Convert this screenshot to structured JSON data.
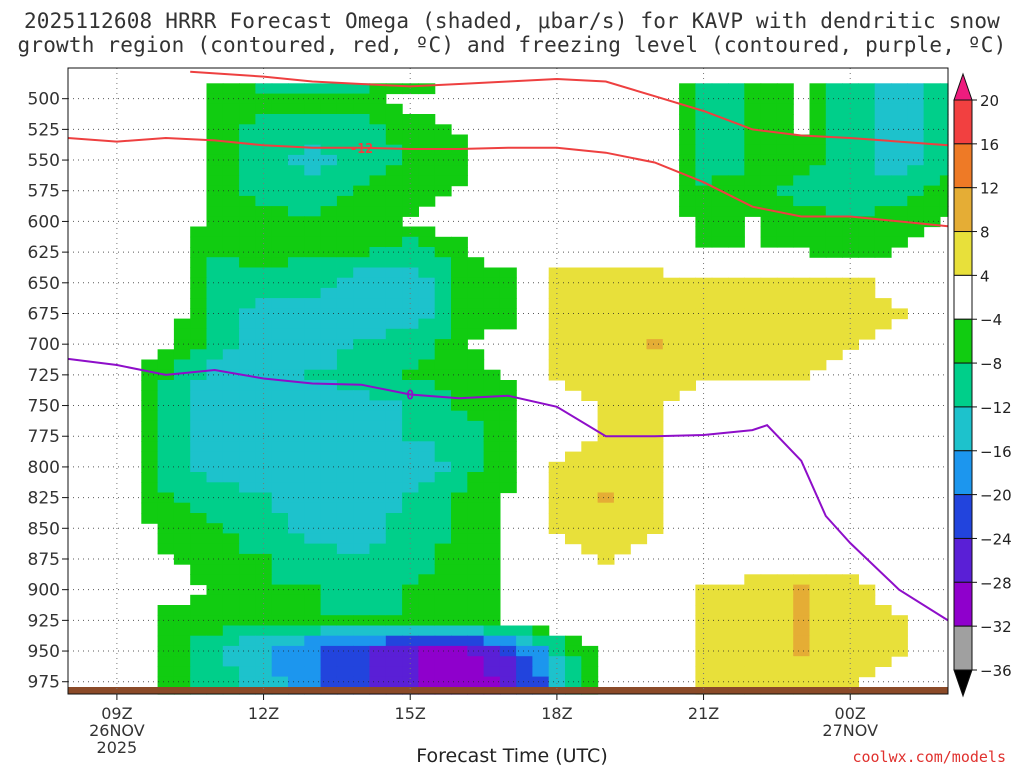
{
  "header": {
    "title_line1": "2025112608 HRRR Forecast Omega (shaded, μbar/s) for KAVP with dendritic snow",
    "title_line2": "growth region (contoured, red, ºC) and freezing level (contoured, purple, ºC)"
  },
  "footer": {
    "xlabel": "Forecast Time (UTC)",
    "credit": "coolwx.com/models"
  },
  "chart_data": {
    "type": "heatmap",
    "x_time_hours": [
      8,
      9,
      10,
      11,
      12,
      13,
      14,
      15,
      16,
      17,
      18,
      19,
      20,
      21,
      22,
      23,
      24,
      25,
      26
    ],
    "xlim": [
      8,
      26
    ],
    "x_ticks": [
      {
        "hour": 9,
        "label": "09Z",
        "date": "26NOV",
        "year": "2025"
      },
      {
        "hour": 12,
        "label": "12Z"
      },
      {
        "hour": 15,
        "label": "15Z"
      },
      {
        "hour": 18,
        "label": "18Z"
      },
      {
        "hour": 21,
        "label": "21Z"
      },
      {
        "hour": 24,
        "label": "00Z",
        "date": "27NOV"
      }
    ],
    "pressure_levels": [
      500,
      525,
      550,
      575,
      600,
      625,
      650,
      675,
      700,
      725,
      750,
      775,
      800,
      825,
      850,
      875,
      900,
      925,
      950,
      975
    ],
    "ylim": [
      475,
      985
    ],
    "omega_bounds": [
      -36,
      -32,
      -28,
      -24,
      -20,
      -16,
      -12,
      -8,
      -4,
      4,
      8,
      12,
      16,
      20
    ],
    "colorbar_labels": [
      "20",
      "16",
      "12",
      "8",
      "4",
      "−4",
      "−8",
      "−12",
      "−16",
      "−20",
      "−24",
      "−28",
      "−32",
      "−36"
    ],
    "colors": {
      "lt_neg36": "#000000",
      "m36_m32": "#a0a0a0",
      "m32_m28": "#8f00cc",
      "m28_m24": "#5a1fd6",
      "m24_m20": "#2244dd",
      "m20_m16": "#1c96ee",
      "m16_m12": "#1dc2cc",
      "m12_m8": "#00cf8a",
      "m8_m4": "#11cc11",
      "m4_p4": "#ffffff",
      "p4_p8": "#e8e03a",
      "p8_p12": "#e5ad35",
      "p12_p16": "#ee7a26",
      "p16_p20": "#f24040",
      "gt_20": "#ee1c7e",
      "dgz_line": "#ee4040",
      "freezing_line": "#8e0ec9",
      "ground": "#8b4a28"
    },
    "omega": [
      [
        0,
        0,
        0,
        -6,
        -6,
        -6,
        -6,
        -2,
        -2,
        0,
        0,
        0,
        0,
        -10,
        -8,
        -4,
        -10,
        -16,
        -10,
        -6
      ],
      [
        0,
        0,
        0,
        -6,
        -10,
        -10,
        -10,
        -6,
        -4,
        0,
        0,
        0,
        0,
        -10,
        -8,
        -4,
        -10,
        -16,
        -10,
        -6
      ],
      [
        0,
        0,
        0,
        -6,
        -10,
        -14,
        -10,
        -8,
        -6,
        0,
        0,
        0,
        0,
        -10,
        -8,
        -6,
        -10,
        -14,
        -10,
        -6
      ],
      [
        0,
        0,
        0,
        -6,
        -10,
        -10,
        -8,
        -6,
        -4,
        0,
        0,
        0,
        0,
        -8,
        -6,
        -10,
        -12,
        -10,
        -6,
        0
      ],
      [
        0,
        0,
        0,
        -6,
        -6,
        -8,
        -6,
        -4,
        0,
        0,
        0,
        0,
        0,
        -6,
        -4,
        -6,
        -8,
        -6,
        -4,
        0
      ],
      [
        0,
        0,
        0,
        -8,
        -6,
        -8,
        -8,
        -10,
        -6,
        0,
        0,
        0,
        0,
        -4,
        -4,
        -4,
        -6,
        -4,
        0,
        0
      ],
      [
        0,
        0,
        0,
        -10,
        -10,
        -10,
        -14,
        -14,
        -8,
        -6,
        6,
        6,
        6,
        5,
        6,
        6,
        6,
        0,
        0,
        0
      ],
      [
        0,
        0,
        0,
        -10,
        -14,
        -16,
        -14,
        -14,
        -8,
        -6,
        5,
        6,
        6,
        6,
        6,
        6,
        6,
        5,
        0,
        0
      ],
      [
        0,
        0,
        -4,
        -10,
        -14,
        -14,
        -12,
        -10,
        -6,
        0,
        6,
        6,
        8,
        6,
        6,
        6,
        5,
        0,
        0,
        0
      ],
      [
        0,
        0,
        -8,
        -14,
        -14,
        -12,
        -10,
        -8,
        -6,
        -4,
        6,
        6,
        6,
        6,
        6,
        5,
        0,
        0,
        0,
        0
      ],
      [
        0,
        0,
        -10,
        -14,
        -14,
        -14,
        -14,
        -12,
        -8,
        -6,
        0,
        6,
        5,
        0,
        0,
        0,
        0,
        0,
        0,
        0
      ],
      [
        0,
        0,
        -10,
        -14,
        -16,
        -16,
        -16,
        -12,
        -10,
        -6,
        0,
        5,
        5,
        0,
        0,
        0,
        0,
        0,
        0,
        0
      ],
      [
        0,
        0,
        -10,
        -14,
        -14,
        -14,
        -16,
        -16,
        -10,
        -6,
        6,
        6,
        5,
        0,
        0,
        0,
        0,
        0,
        0,
        0
      ],
      [
        0,
        0,
        -8,
        -10,
        -12,
        -16,
        -16,
        -12,
        -8,
        -4,
        6,
        8,
        6,
        0,
        0,
        0,
        0,
        0,
        0,
        0
      ],
      [
        0,
        0,
        -6,
        -8,
        -10,
        -14,
        -14,
        -10,
        -8,
        -4,
        5,
        6,
        5,
        0,
        0,
        0,
        0,
        0,
        0,
        0
      ],
      [
        0,
        0,
        -4,
        -6,
        -8,
        -10,
        -12,
        -10,
        -6,
        -4,
        0,
        5,
        0,
        0,
        0,
        0,
        0,
        0,
        0,
        0
      ],
      [
        0,
        0,
        0,
        -6,
        -8,
        -8,
        -10,
        -8,
        -6,
        -4,
        0,
        0,
        0,
        5,
        6,
        8,
        6,
        0,
        0,
        0
      ],
      [
        0,
        0,
        -6,
        -6,
        -8,
        -8,
        -8,
        -8,
        -6,
        -4,
        0,
        0,
        0,
        6,
        6,
        8,
        6,
        5,
        0,
        0
      ],
      [
        0,
        0,
        -6,
        -12,
        -16,
        -20,
        -24,
        -28,
        -30,
        -24,
        -12,
        0,
        0,
        5,
        6,
        8,
        6,
        5,
        0,
        0
      ],
      [
        0,
        0,
        -6,
        -10,
        -14,
        -20,
        -24,
        -28,
        -30,
        -28,
        -16,
        0,
        0,
        5,
        5,
        6,
        5,
        0,
        0,
        0
      ]
    ],
    "omega_note": "",
    "dgz_contours": [
      {
        "label": "-12",
        "points": [
          [
            8,
            532
          ],
          [
            9,
            535
          ],
          [
            10,
            532
          ],
          [
            11,
            534
          ],
          [
            12,
            538
          ],
          [
            13,
            540
          ],
          [
            14,
            540
          ],
          [
            15,
            541
          ],
          [
            16,
            541
          ],
          [
            17,
            540
          ],
          [
            18,
            540
          ],
          [
            19,
            544
          ],
          [
            20,
            552
          ],
          [
            21,
            568
          ],
          [
            22,
            588
          ],
          [
            23,
            596
          ],
          [
            24,
            596
          ],
          [
            25,
            600
          ],
          [
            26,
            604
          ]
        ]
      },
      {
        "label": "",
        "points": [
          [
            10.5,
            478
          ],
          [
            12,
            482
          ],
          [
            13,
            486
          ],
          [
            14,
            488
          ],
          [
            15,
            490
          ],
          [
            16,
            488
          ],
          [
            17,
            486
          ],
          [
            18,
            484
          ],
          [
            19,
            486
          ],
          [
            20,
            498
          ],
          [
            21,
            510
          ],
          [
            22,
            525
          ],
          [
            23,
            530
          ],
          [
            24,
            532
          ],
          [
            25,
            535
          ],
          [
            26,
            538
          ]
        ]
      }
    ],
    "freezing_contours": [
      {
        "label": "0",
        "points": [
          [
            8,
            712
          ],
          [
            9,
            717
          ],
          [
            10,
            725
          ],
          [
            11,
            721
          ],
          [
            12,
            728
          ],
          [
            13,
            732
          ],
          [
            14,
            733
          ],
          [
            15,
            741
          ],
          [
            16,
            744
          ],
          [
            17,
            742
          ],
          [
            18,
            751
          ],
          [
            19,
            775
          ],
          [
            20,
            775
          ],
          [
            21,
            774
          ],
          [
            22,
            770
          ],
          [
            22.3,
            766
          ],
          [
            23,
            795
          ],
          [
            23.5,
            840
          ],
          [
            24,
            862
          ],
          [
            25,
            900
          ],
          [
            26,
            925
          ]
        ]
      }
    ]
  }
}
